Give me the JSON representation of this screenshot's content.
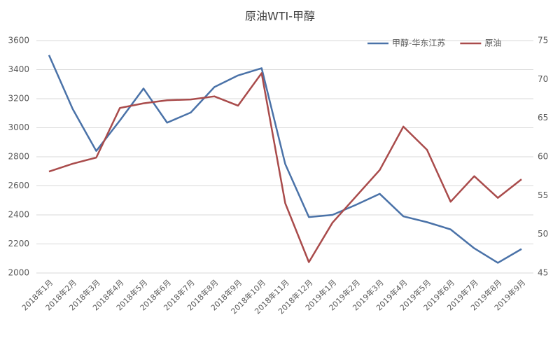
{
  "chart_data": {
    "type": "line",
    "title": "原油WTI-甲醇",
    "categories": [
      "2018年1月",
      "2018年2月",
      "2018年3月",
      "2018年4月",
      "2018年5月",
      "2018年6月",
      "2018年7月",
      "2018年8月",
      "2018年9月",
      "2018年10月",
      "2018年11月",
      "2018年12月",
      "2019年1月",
      "2019年2月",
      "2019年3月",
      "2019年4月",
      "2019年5月",
      "2019年6月",
      "2019年7月",
      "2019年8月",
      "2019年9月"
    ],
    "series": [
      {
        "name": "甲醇-华东江苏",
        "color": "#4a72a8",
        "values": [
          3500,
          3130,
          2840,
          3050,
          3270,
          3035,
          3105,
          3280,
          3360,
          3410,
          2750,
          2385,
          2400,
          2470,
          2545,
          2390,
          2350,
          2300,
          2170,
          2070,
          2165
        ]
      },
      {
        "name": "原油",
        "color": "#a94b4b",
        "axis": "y2",
        "values": [
          58.1,
          59.1,
          59.9,
          66.3,
          66.9,
          67.3,
          67.4,
          67.8,
          66.6,
          70.8,
          54.0,
          46.4,
          51.5,
          54.9,
          58.3,
          63.9,
          60.9,
          54.2,
          57.5,
          54.7,
          57.1
        ]
      }
    ],
    "ylim": [
      2000,
      3600
    ],
    "yticks": [
      2000,
      2200,
      2400,
      2600,
      2800,
      3000,
      3200,
      3400,
      3600
    ],
    "y2lim": [
      45,
      75
    ],
    "y2ticks": [
      45,
      50,
      55,
      60,
      65,
      70,
      75
    ],
    "grid": true,
    "legend": "top-right"
  }
}
